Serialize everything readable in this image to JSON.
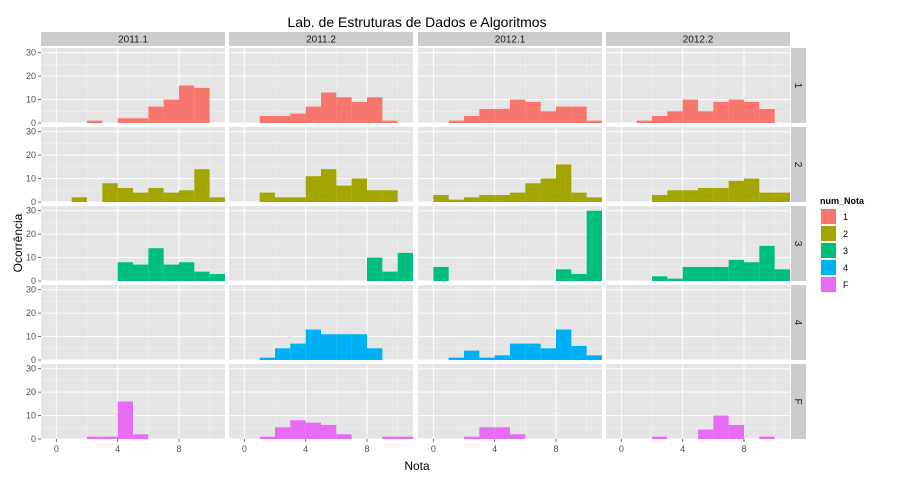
{
  "chart_data": {
    "type": "bar",
    "title": "Lab. de Estruturas de Dados e Algoritmos",
    "xlabel": "Nota",
    "ylabel": "Ocorrência",
    "xlim": [
      -1,
      11
    ],
    "ylim": [
      0,
      32
    ],
    "x_ticks": [
      "0",
      "4",
      "8"
    ],
    "y_ticks": [
      "0",
      "10",
      "20",
      "30"
    ],
    "bin_width": 1,
    "bin_starts": [
      0,
      1,
      2,
      3,
      4,
      5,
      6,
      7,
      8,
      9,
      10
    ],
    "columns": [
      "2011.1",
      "2011.2",
      "2012.1",
      "2012.2"
    ],
    "rows": [
      "1",
      "2",
      "3",
      "4",
      "F"
    ],
    "legend": {
      "title": "num_Nota",
      "placement": "right",
      "entries": [
        {
          "label": "1",
          "color": "#F8766D"
        },
        {
          "label": "2",
          "color": "#A3A500"
        },
        {
          "label": "3",
          "color": "#00BF7D"
        },
        {
          "label": "4",
          "color": "#00B0F6"
        },
        {
          "label": "F",
          "color": "#E76BF3"
        }
      ]
    },
    "grid": true,
    "panels": [
      {
        "column": "2011.1",
        "row": "1",
        "counts": [
          0,
          0,
          1,
          0,
          2,
          2,
          7,
          10,
          16,
          15,
          0
        ]
      },
      {
        "column": "2011.2",
        "row": "1",
        "counts": [
          0,
          3,
          3,
          4,
          7,
          13,
          11,
          9,
          11,
          1,
          0
        ]
      },
      {
        "column": "2012.1",
        "row": "1",
        "counts": [
          0,
          1,
          3,
          6,
          6,
          10,
          9,
          5,
          7,
          7,
          1
        ]
      },
      {
        "column": "2012.2",
        "row": "1",
        "counts": [
          0,
          1,
          3,
          5,
          10,
          5,
          9,
          10,
          9,
          6,
          0
        ]
      },
      {
        "column": "2011.1",
        "row": "2",
        "counts": [
          0,
          2,
          0,
          8,
          6,
          4,
          6,
          4,
          5,
          14,
          2
        ]
      },
      {
        "column": "2011.2",
        "row": "2",
        "counts": [
          0,
          4,
          2,
          2,
          11,
          14,
          7,
          10,
          5,
          5,
          0
        ]
      },
      {
        "column": "2012.1",
        "row": "2",
        "counts": [
          3,
          1,
          2,
          3,
          3,
          4,
          8,
          10,
          16,
          4,
          2
        ]
      },
      {
        "column": "2012.2",
        "row": "2",
        "counts": [
          0,
          0,
          3,
          5,
          5,
          6,
          6,
          9,
          10,
          4,
          4
        ]
      },
      {
        "column": "2011.1",
        "row": "3",
        "counts": [
          0,
          0,
          0,
          0,
          8,
          7,
          14,
          7,
          8,
          4,
          3
        ]
      },
      {
        "column": "2011.2",
        "row": "3",
        "counts": [
          0,
          0,
          0,
          0,
          0,
          0,
          0,
          0,
          10,
          4,
          12
        ]
      },
      {
        "column": "2012.1",
        "row": "3",
        "counts": [
          6,
          0,
          0,
          0,
          0,
          0,
          0,
          0,
          5,
          3,
          30
        ]
      },
      {
        "column": "2012.2",
        "row": "3",
        "counts": [
          0,
          0,
          2,
          1,
          6,
          6,
          6,
          9,
          8,
          15,
          5
        ]
      },
      {
        "column": "2011.1",
        "row": "4",
        "counts": [
          0,
          0,
          0,
          0,
          0,
          0,
          0,
          0,
          0,
          0,
          0
        ]
      },
      {
        "column": "2011.2",
        "row": "4",
        "counts": [
          0,
          1,
          5,
          7,
          13,
          11,
          11,
          11,
          5,
          0,
          0
        ]
      },
      {
        "column": "2012.1",
        "row": "4",
        "counts": [
          0,
          1,
          4,
          1,
          2,
          7,
          7,
          5,
          13,
          6,
          2
        ]
      },
      {
        "column": "2012.2",
        "row": "4",
        "counts": [
          0,
          0,
          0,
          0,
          0,
          0,
          0,
          0,
          0,
          0,
          0
        ]
      },
      {
        "column": "2011.1",
        "row": "F",
        "counts": [
          0,
          0,
          1,
          1,
          16,
          2,
          0,
          0,
          0,
          0,
          0
        ]
      },
      {
        "column": "2011.2",
        "row": "F",
        "counts": [
          0,
          1,
          5,
          8,
          7,
          6,
          2,
          0,
          0,
          1,
          1
        ]
      },
      {
        "column": "2012.1",
        "row": "F",
        "counts": [
          0,
          0,
          1,
          5,
          5,
          2,
          0,
          0,
          0,
          0,
          0
        ]
      },
      {
        "column": "2012.2",
        "row": "F",
        "counts": [
          0,
          0,
          1,
          0,
          0,
          4,
          10,
          6,
          0,
          1,
          0
        ]
      }
    ]
  }
}
